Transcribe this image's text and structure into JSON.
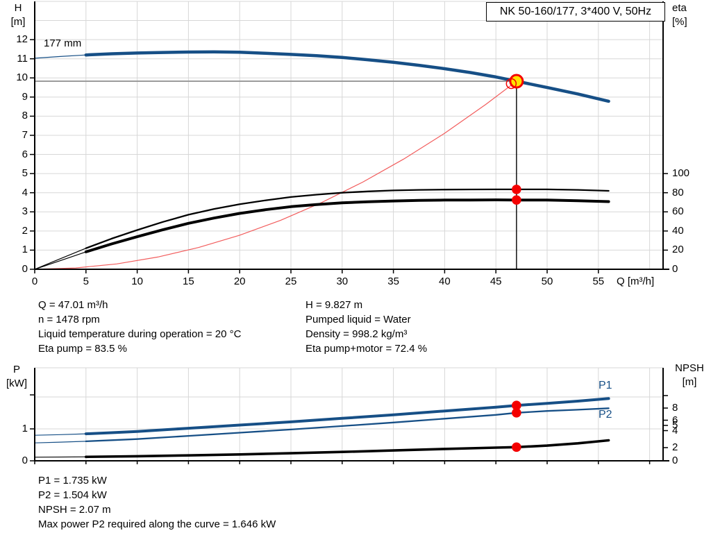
{
  "title_box": "NK 50-160/177, 3*400 V, 50Hz",
  "upper_chart": {
    "y_left_unit_line1": "H",
    "y_left_unit_line2": "[m]",
    "y_right_unit_line1": "eta",
    "y_right_unit_line2": "[%]",
    "impeller_label": "177 mm",
    "x_axis_label": "Q [m³/h]"
  },
  "lower_chart": {
    "y_left_unit_line1": "P",
    "y_left_unit_line2": "[kW]",
    "y_right_unit_line1": "NPSH",
    "y_right_unit_line2": "[m]",
    "p1_label": "P1",
    "p2_label": "P2"
  },
  "info_top": {
    "left": [
      "Q = 47.01 m³/h",
      "n = 1478 rpm",
      "Liquid temperature during operation = 20 °C",
      "Eta pump = 83.5 %"
    ],
    "right": [
      "H = 9.827 m",
      "Pumped liquid = Water",
      "Density = 998.2 kg/m³",
      "Eta pump+motor = 72.4 %"
    ]
  },
  "info_bottom": {
    "lines": [
      "P1 = 1.735 kW",
      "P2 = 1.504 kW",
      "NPSH = 2.07 m",
      "Max power P2 required along the curve = 1.646 kW"
    ]
  },
  "colors": {
    "curve_blue": "#164f86",
    "curve_black": "#000000",
    "parabola_red": "#f25c5c",
    "marker_red": "#f40000",
    "duty_yellow": "#ffe200",
    "duty_gray_line": "#9b9b9b",
    "gridline": "#d7d7d7"
  },
  "chart_data": [
    {
      "id": "qh-eta-chart",
      "type": "line",
      "title": "NK 50-160/177, 3*400 V, 50Hz",
      "xlabel": "Q [m³/h]",
      "x_ticks": [
        0,
        5,
        10,
        15,
        20,
        25,
        30,
        35,
        40,
        45,
        50,
        55
      ],
      "x_range": [
        0,
        61.3
      ],
      "y_left_label": "H [m]",
      "y_left_ticks": [
        0,
        1,
        2,
        3,
        4,
        5,
        6,
        7,
        8,
        9,
        10,
        11,
        12
      ],
      "y_left_range": [
        0,
        14
      ],
      "y_right_label": "eta [%]",
      "y_right_ticks": [
        0,
        20,
        40,
        60,
        80,
        100
      ],
      "grid": true,
      "duty_point": {
        "Q": 47.01,
        "H": 9.827
      },
      "series": [
        {
          "name": "QH 177 mm",
          "axis": "H",
          "color": "#164f86",
          "width": 4.5,
          "thin_until": 5,
          "points": [
            [
              0,
              11.03
            ],
            [
              2.5,
              11.12
            ],
            [
              5,
              11.2
            ],
            [
              7.5,
              11.26
            ],
            [
              10,
              11.3
            ],
            [
              12.5,
              11.33
            ],
            [
              15,
              11.35
            ],
            [
              17.5,
              11.36
            ],
            [
              20,
              11.34
            ],
            [
              22.5,
              11.29
            ],
            [
              25,
              11.23
            ],
            [
              27.5,
              11.16
            ],
            [
              30,
              11.07
            ],
            [
              32.5,
              10.95
            ],
            [
              35,
              10.82
            ],
            [
              37.5,
              10.66
            ],
            [
              40,
              10.48
            ],
            [
              42.5,
              10.28
            ],
            [
              45,
              10.05
            ],
            [
              47.01,
              9.83
            ],
            [
              50,
              9.5
            ],
            [
              53,
              9.16
            ],
            [
              56,
              8.78
            ]
          ]
        },
        {
          "name": "Eta pump",
          "axis": "eta",
          "color": "#000000",
          "width": 2.3,
          "thin_until": 5,
          "points": [
            [
              0,
              0
            ],
            [
              2.5,
              11
            ],
            [
              5,
              22
            ],
            [
              7.5,
              32
            ],
            [
              10,
              41
            ],
            [
              12.5,
              49.5
            ],
            [
              15,
              57
            ],
            [
              17.5,
              63
            ],
            [
              20,
              68
            ],
            [
              22.5,
              72
            ],
            [
              25,
              75.5
            ],
            [
              27.5,
              78
            ],
            [
              30,
              80
            ],
            [
              32.5,
              81.4
            ],
            [
              35,
              82.4
            ],
            [
              37.5,
              83.0
            ],
            [
              40,
              83.3
            ],
            [
              42.5,
              83.4
            ],
            [
              45,
              83.5
            ],
            [
              47.01,
              83.5
            ],
            [
              50,
              83.5
            ],
            [
              53,
              83.0
            ],
            [
              56,
              82.0
            ]
          ]
        },
        {
          "name": "Eta pump+motor",
          "axis": "eta",
          "color": "#000000",
          "width": 4,
          "thin_until": 5,
          "points": [
            [
              0,
              0
            ],
            [
              2.5,
              9
            ],
            [
              5,
              18.2
            ],
            [
              7.5,
              26.5
            ],
            [
              10,
              34
            ],
            [
              12.5,
              41.3
            ],
            [
              15,
              48
            ],
            [
              17.5,
              53.5
            ],
            [
              20,
              58.4
            ],
            [
              22.5,
              62.2
            ],
            [
              25,
              65.4
            ],
            [
              27.5,
              67.7
            ],
            [
              30,
              69.4
            ],
            [
              32.5,
              70.6
            ],
            [
              35,
              71.4
            ],
            [
              37.5,
              72.0
            ],
            [
              40,
              72.3
            ],
            [
              42.5,
              72.4
            ],
            [
              45,
              72.5
            ],
            [
              47.01,
              72.4
            ],
            [
              50,
              72.3
            ],
            [
              53,
              71.7
            ],
            [
              56,
              70.7
            ]
          ]
        },
        {
          "name": "Speed reduction parabola",
          "axis": "H",
          "color": "#f25c5c",
          "width": 1.2,
          "points": [
            [
              0,
              0
            ],
            [
              4,
              0.07
            ],
            [
              8,
              0.28
            ],
            [
              12,
              0.64
            ],
            [
              16,
              1.14
            ],
            [
              20,
              1.78
            ],
            [
              24,
              2.56
            ],
            [
              28,
              3.49
            ],
            [
              32,
              4.55
            ],
            [
              36,
              5.76
            ],
            [
              40,
              7.11
            ],
            [
              44,
              8.61
            ],
            [
              47.01,
              9.83
            ]
          ]
        }
      ],
      "marker_points": [
        {
          "series": "QH 177 mm",
          "Q": 47.01,
          "H": 9.827,
          "style": "yellow-duty-point"
        },
        {
          "series": "Speed reduction parabola",
          "Q": 46.5,
          "H": 9.7,
          "style": "red-ring"
        },
        {
          "series": "Eta pump",
          "Q": 47.01,
          "eta": 83.5,
          "style": "red-dot"
        },
        {
          "series": "Eta pump+motor",
          "Q": 47.01,
          "eta": 72.4,
          "style": "red-dot"
        }
      ]
    },
    {
      "id": "power-npsh-chart",
      "type": "line",
      "xlabel": "",
      "x_ticks": [
        0,
        5,
        10,
        15,
        20,
        25,
        30,
        35,
        40,
        45,
        50,
        55
      ],
      "x_range": [
        0,
        61.3
      ],
      "y_left_label": "P [kW]",
      "y_left_ticks": [
        0,
        1
      ],
      "y_left_range": [
        0,
        2.9
      ],
      "y_right_label": "NPSH [m]",
      "y_right_ticks": [
        0,
        2,
        4,
        5,
        6,
        8
      ],
      "grid": true,
      "series": [
        {
          "name": "P1",
          "axis": "P",
          "color": "#164f86",
          "width": 4,
          "thin_until": 5,
          "points": [
            [
              0,
              0.8
            ],
            [
              2.5,
              0.82
            ],
            [
              5,
              0.845
            ],
            [
              7.5,
              0.88
            ],
            [
              10,
              0.92
            ],
            [
              15,
              1.02
            ],
            [
              20,
              1.12
            ],
            [
              25,
              1.22
            ],
            [
              30,
              1.33
            ],
            [
              35,
              1.44
            ],
            [
              40,
              1.56
            ],
            [
              45,
              1.68
            ],
            [
              47.01,
              1.735
            ],
            [
              50,
              1.8
            ],
            [
              53,
              1.87
            ],
            [
              56,
              1.95
            ]
          ]
        },
        {
          "name": "P2",
          "axis": "P",
          "color": "#164f86",
          "width": 2.3,
          "thin_until": 5,
          "points": [
            [
              0,
              0.56
            ],
            [
              2.5,
              0.585
            ],
            [
              5,
              0.61
            ],
            [
              7.5,
              0.645
            ],
            [
              10,
              0.68
            ],
            [
              15,
              0.78
            ],
            [
              20,
              0.88
            ],
            [
              25,
              0.98
            ],
            [
              30,
              1.09
            ],
            [
              35,
              1.2
            ],
            [
              40,
              1.32
            ],
            [
              45,
              1.44
            ],
            [
              47.01,
              1.504
            ],
            [
              50,
              1.56
            ],
            [
              53,
              1.6
            ],
            [
              56,
              1.646
            ]
          ]
        },
        {
          "name": "NPSH",
          "axis": "NPSH",
          "color": "#000000",
          "width": 3.6,
          "thin_until": 5,
          "points": [
            [
              0,
              0.55
            ],
            [
              5,
              0.6
            ],
            [
              10,
              0.7
            ],
            [
              15,
              0.82
            ],
            [
              20,
              0.97
            ],
            [
              25,
              1.15
            ],
            [
              30,
              1.35
            ],
            [
              35,
              1.57
            ],
            [
              40,
              1.8
            ],
            [
              45,
              2.0
            ],
            [
              47.01,
              2.07
            ],
            [
              50,
              2.3
            ],
            [
              53,
              2.65
            ],
            [
              56,
              3.1
            ]
          ]
        }
      ],
      "marker_points": [
        {
          "series": "P1",
          "Q": 47.01,
          "P": 1.735,
          "style": "red-dot"
        },
        {
          "series": "P2",
          "Q": 47.01,
          "P": 1.504,
          "style": "red-dot"
        },
        {
          "series": "NPSH",
          "Q": 47.01,
          "NPSH": 2.07,
          "style": "red-dot"
        }
      ]
    }
  ]
}
